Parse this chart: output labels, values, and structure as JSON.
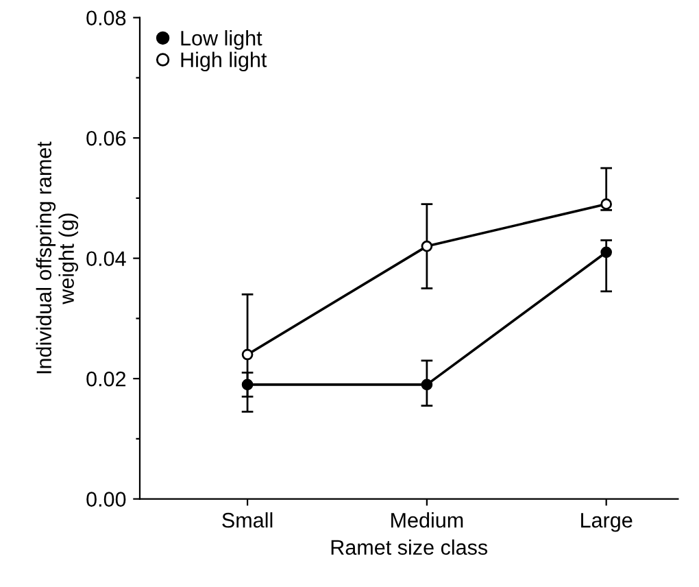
{
  "chart_data": {
    "type": "line",
    "xlabel": "Ramet size class",
    "ylabel": "Individual offspring ramet\nweight (g)",
    "categories": [
      "Small",
      "Medium",
      "Large"
    ],
    "series": [
      {
        "name": "Low light",
        "color": "#000000",
        "values": [
          0.019,
          0.019,
          0.041
        ],
        "errors": [
          [
            0.0145,
            0.021
          ],
          [
            0.0155,
            0.023
          ],
          [
            0.0345,
            0.043
          ]
        ]
      },
      {
        "name": "High light",
        "color": "#000000",
        "values": [
          0.024,
          0.042,
          0.049
        ],
        "errors": [
          [
            0.017,
            0.034
          ],
          [
            0.035,
            0.049
          ],
          [
            0.048,
            0.055
          ]
        ]
      }
    ],
    "ylim": [
      0.0,
      0.08
    ],
    "yticks": [
      {
        "value": 0,
        "label": "0.00"
      },
      {
        "value": 0.01,
        "label": null
      },
      {
        "value": 0.02,
        "label": "0.02"
      },
      {
        "value": 0.03,
        "label": null
      },
      {
        "value": 0.04,
        "label": "0.04"
      },
      {
        "value": 0.05,
        "label": null
      },
      {
        "value": 0.06,
        "label": "0.06"
      },
      {
        "value": 0.07,
        "label": null
      },
      {
        "value": 0.08,
        "label": "0.08"
      }
    ],
    "marker": "circle",
    "line_style": "solid",
    "legend": "top left",
    "grid": false
  }
}
